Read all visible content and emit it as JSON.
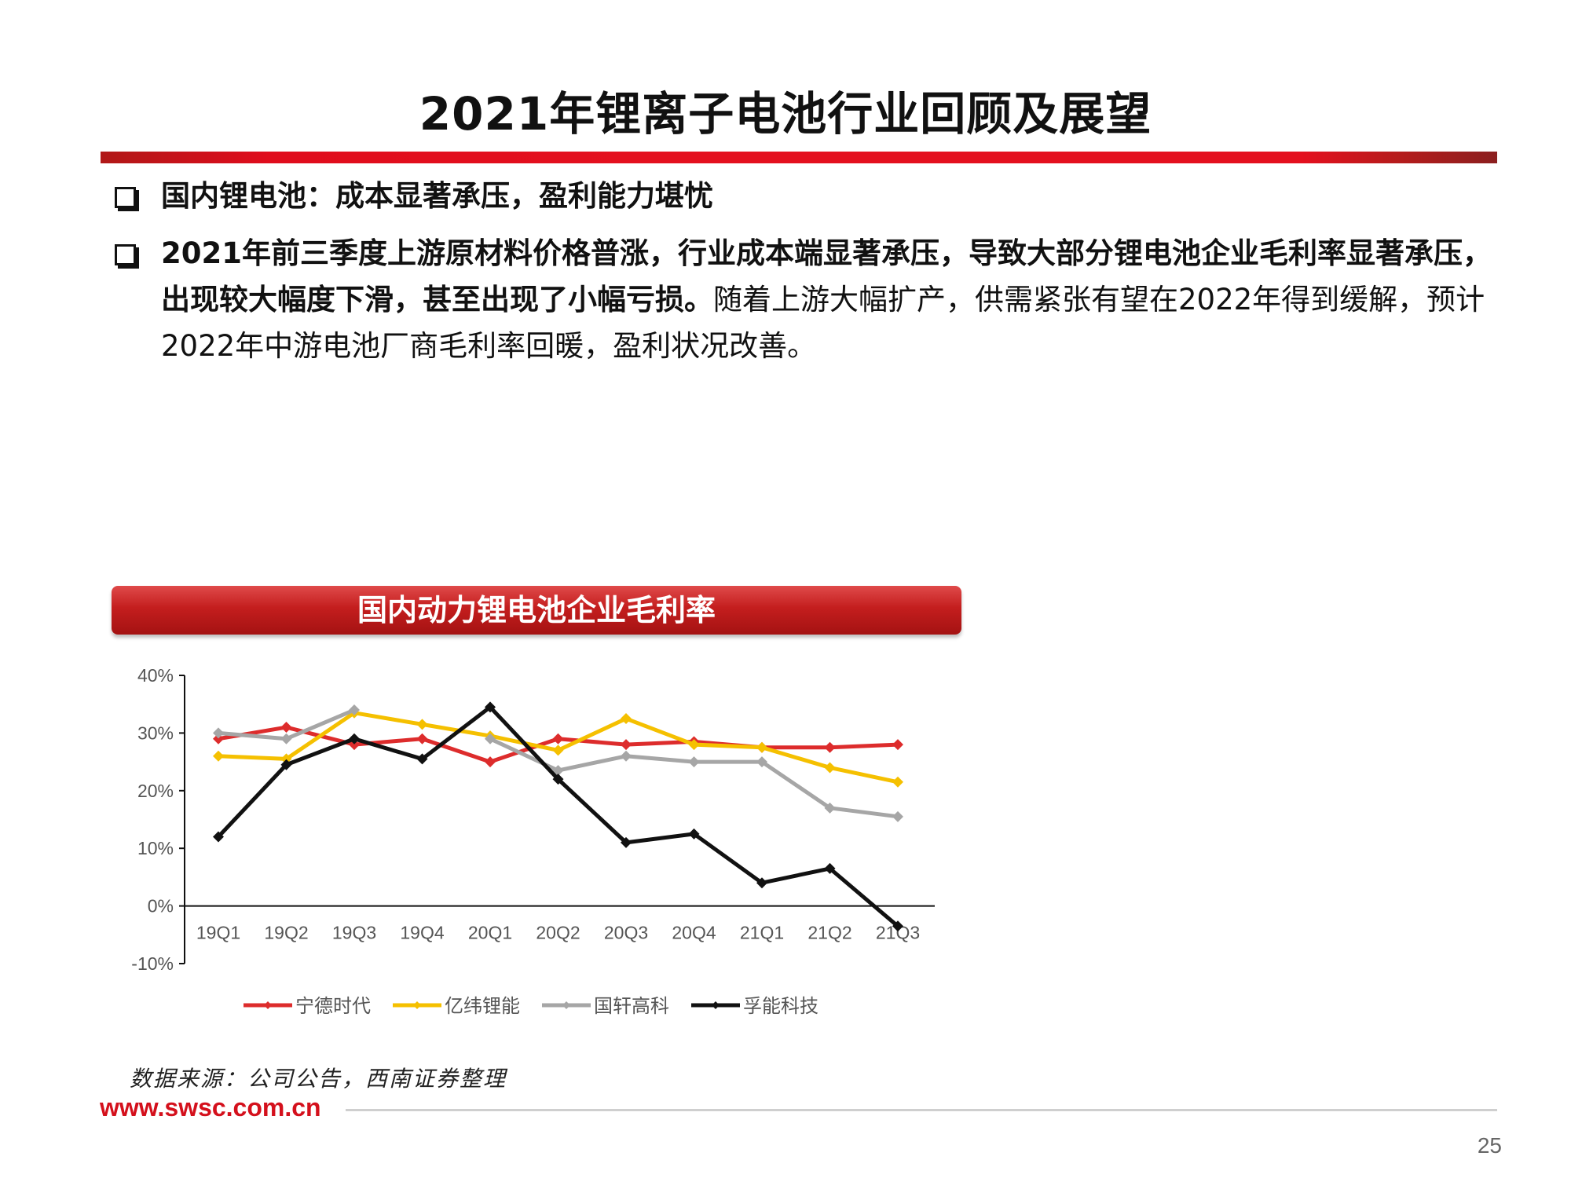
{
  "slide": {
    "title": "2021年锂离子电池行业回顾及展望",
    "bullet1": "国内锂电池：成本显著承压，盈利能力堪忧",
    "bullet2_bold": "2021年前三季度上游原材料价格普涨，行业成本端显著承压，导致大部分锂电池企业毛利率显著承压，出现较大幅度下滑，甚至出现了小幅亏损。",
    "bullet2_normal": "随着上游大幅扩产，供需紧张有望在2022年得到缓解，预计2022年中游电池厂商毛利率回暖，盈利状况改善。",
    "chart_header": "国内动力锂电池企业毛利率",
    "source": "数据来源：公司公告，西南证券整理",
    "website": "www.swsc.com.cn",
    "page_number": "25"
  },
  "colors": {
    "accent": "#e4101e",
    "dark_red": "#a41212"
  },
  "chart_data": {
    "type": "line",
    "title": "国内动力锂电池企业毛利率",
    "categories": [
      "19Q1",
      "19Q2",
      "19Q3",
      "19Q4",
      "20Q1",
      "20Q2",
      "20Q3",
      "20Q4",
      "21Q1",
      "21Q2",
      "21Q3"
    ],
    "ylim": [
      -10,
      40
    ],
    "yticks": [
      -10,
      0,
      10,
      20,
      30,
      40
    ],
    "ytick_labels": [
      "-10%",
      "0%",
      "10%",
      "20%",
      "30%",
      "40%"
    ],
    "grid": false,
    "legend": "bottom",
    "series": [
      {
        "name": "宁德时代",
        "color": "#dd2c2c",
        "values": [
          29,
          31,
          28,
          29,
          25,
          29,
          28,
          28.5,
          27.5,
          27.5,
          28
        ]
      },
      {
        "name": "亿纬锂能",
        "color": "#f5c000",
        "values": [
          26,
          25.5,
          33.5,
          31.5,
          29.5,
          27,
          32.5,
          28,
          27.5,
          24,
          21.5
        ]
      },
      {
        "name": "国轩高科",
        "color": "#a6a6a6",
        "values": [
          30,
          29,
          34,
          null,
          29,
          23.5,
          26,
          25,
          25,
          17,
          15.5
        ]
      },
      {
        "name": "孚能科技",
        "color": "#111111",
        "values": [
          12,
          24.5,
          29,
          25.5,
          34.5,
          22,
          11,
          12.5,
          4,
          6.5,
          -3.5
        ]
      }
    ]
  }
}
